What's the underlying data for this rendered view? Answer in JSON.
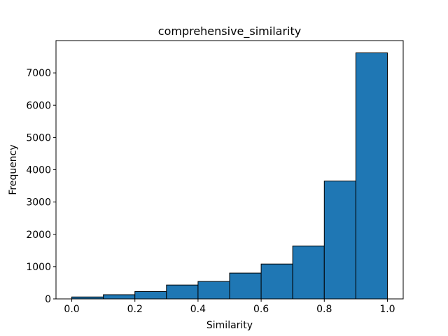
{
  "chart_data": {
    "type": "bar",
    "title": "comprehensive_similarity",
    "xlabel": "Similarity",
    "ylabel": "Frequency",
    "bin_edges": [
      0.0,
      0.1,
      0.2,
      0.3,
      0.4,
      0.5,
      0.6,
      0.7,
      0.8,
      0.9,
      1.0
    ],
    "values": [
      60,
      130,
      230,
      430,
      540,
      800,
      1080,
      1640,
      3650,
      7620
    ],
    "xlim": [
      -0.05,
      1.05
    ],
    "ylim": [
      0,
      8000
    ],
    "xticks": [
      0.0,
      0.2,
      0.4,
      0.6,
      0.8,
      1.0
    ],
    "xtick_labels": [
      "0.0",
      "0.2",
      "0.4",
      "0.6",
      "0.8",
      "1.0"
    ],
    "yticks": [
      0,
      1000,
      2000,
      3000,
      4000,
      5000,
      6000,
      7000
    ],
    "ytick_labels": [
      "0",
      "1000",
      "2000",
      "3000",
      "4000",
      "5000",
      "6000",
      "7000"
    ],
    "bar_color": "#1f77b4",
    "edge_color": "#000000",
    "grid": false,
    "legend": "none"
  }
}
